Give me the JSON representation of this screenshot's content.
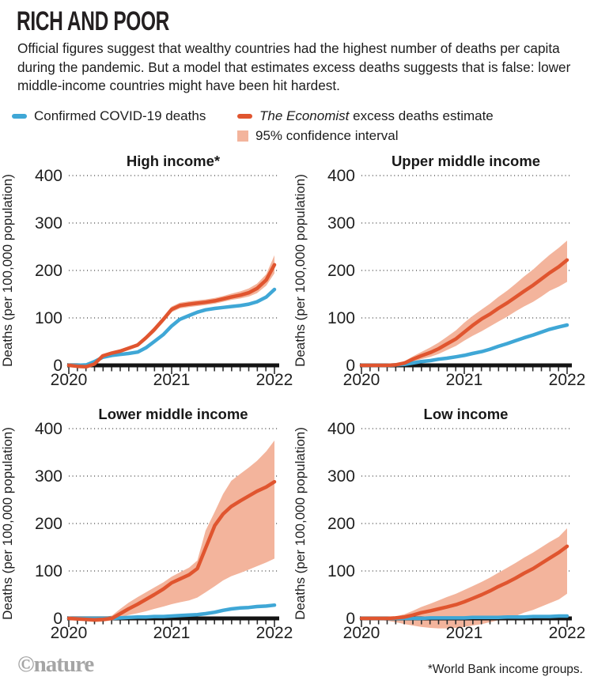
{
  "header": {
    "title": "RICH AND POOR",
    "subtitle": "Official figures suggest that wealthy countries had the highest number of deaths per capita during the pandemic. But a model that estimates excess deaths suggests that is false: lower middle-income countries might have been hit hardest."
  },
  "legend": {
    "confirmed": "Confirmed COVID-19 deaths",
    "excess_italic": "The Economist",
    "excess_rest": " excess deaths estimate",
    "ci": "95% confidence interval"
  },
  "footer": {
    "brand": "©nature",
    "footnote": "*World Bank income groups."
  },
  "colors": {
    "confirmed": "#3fa7d6",
    "excess": "#e0552f",
    "ci_band": "#f3b49c",
    "axis": "#141414",
    "grid_dots": "#4a4a4a",
    "text": "#1f1f1f",
    "brand_gray": "#a5a5a5"
  },
  "chart_data": {
    "type": "line",
    "title": "RICH AND POOR",
    "ylabel": "Deaths (per 100,000 population)",
    "xlabel": "",
    "ylim": [
      0,
      400
    ],
    "y_ticks": [
      0,
      100,
      200,
      300,
      400
    ],
    "x_ticks": [
      2020,
      2021,
      2022
    ],
    "grid": "dotted",
    "legend_position": "top",
    "series_names": [
      "Confirmed COVID-19 deaths",
      "The Economist excess deaths estimate",
      "95% confidence interval"
    ],
    "x": [
      2020,
      2020.08,
      2020.17,
      2020.25,
      2020.33,
      2020.42,
      2020.5,
      2020.58,
      2020.67,
      2020.75,
      2020.83,
      2020.92,
      2021,
      2021.08,
      2021.17,
      2021.25,
      2021.33,
      2021.42,
      2021.5,
      2021.58,
      2021.67,
      2021.75,
      2021.83,
      2021.92,
      2022
    ],
    "panels": [
      {
        "title": "High income*",
        "confirmed": [
          0,
          0,
          1,
          8,
          17,
          21,
          23,
          25,
          28,
          37,
          50,
          65,
          83,
          97,
          105,
          112,
          117,
          120,
          122,
          124,
          126,
          129,
          134,
          144,
          160
        ],
        "excess": [
          0,
          -2,
          -3,
          3,
          20,
          26,
          30,
          36,
          43,
          58,
          75,
          97,
          118,
          126,
          129,
          131,
          133,
          136,
          140,
          144,
          148,
          153,
          162,
          180,
          212
        ],
        "ci_upper": [
          2,
          0,
          -1,
          5,
          23,
          29,
          33,
          39,
          47,
          63,
          81,
          103,
          124,
          132,
          135,
          137,
          139,
          142,
          146,
          151,
          156,
          162,
          172,
          192,
          232
        ],
        "ci_lower": [
          -2,
          -4,
          -5,
          1,
          17,
          23,
          27,
          33,
          39,
          53,
          69,
          91,
          112,
          120,
          123,
          125,
          127,
          130,
          134,
          138,
          141,
          145,
          152,
          168,
          194
        ]
      },
      {
        "title": "Upper middle income",
        "confirmed": [
          0,
          0,
          0,
          0,
          1,
          2,
          5,
          8,
          10,
          13,
          15,
          18,
          21,
          25,
          29,
          34,
          40,
          46,
          52,
          58,
          64,
          70,
          76,
          81,
          85
        ],
        "excess": [
          0,
          0,
          0,
          0,
          1,
          5,
          13,
          20,
          27,
          35,
          45,
          56,
          70,
          84,
          98,
          108,
          120,
          132,
          144,
          156,
          169,
          182,
          195,
          208,
          222
        ],
        "ci_upper": [
          1,
          1,
          1,
          1,
          3,
          9,
          19,
          28,
          38,
          48,
          60,
          74,
          90,
          104,
          118,
          130,
          144,
          158,
          172,
          187,
          202,
          218,
          233,
          248,
          263
        ],
        "ci_lower": [
          -1,
          -1,
          -1,
          -1,
          0,
          2,
          8,
          13,
          18,
          24,
          32,
          41,
          52,
          62,
          72,
          82,
          92,
          103,
          114,
          124,
          134,
          145,
          157,
          166,
          176
        ]
      },
      {
        "title": "Lower middle income",
        "confirmed": [
          0,
          0,
          0,
          0,
          0,
          0,
          1,
          2,
          3,
          3,
          4,
          4,
          5,
          6,
          7,
          8,
          10,
          13,
          17,
          20,
          22,
          23,
          25,
          26,
          28
        ],
        "excess": [
          0,
          -1,
          -2,
          -3,
          -2,
          0,
          10,
          20,
          30,
          40,
          50,
          62,
          75,
          83,
          92,
          105,
          148,
          196,
          220,
          236,
          248,
          258,
          268,
          277,
          288
        ],
        "ci_upper": [
          1,
          0,
          0,
          0,
          2,
          6,
          20,
          33,
          45,
          55,
          65,
          76,
          88,
          97,
          107,
          122,
          185,
          225,
          262,
          290,
          305,
          318,
          332,
          352,
          375
        ],
        "ci_lower": [
          -1,
          -3,
          -6,
          -8,
          -7,
          -4,
          2,
          7,
          11,
          15,
          20,
          25,
          30,
          34,
          38,
          44,
          55,
          68,
          80,
          89,
          96,
          103,
          110,
          118,
          126
        ]
      },
      {
        "title": "Low income",
        "confirmed": [
          0,
          0,
          0,
          0,
          0,
          0,
          0,
          0,
          1,
          1,
          1,
          1,
          1,
          2,
          2,
          2,
          2,
          3,
          3,
          3,
          4,
          4,
          4,
          5,
          5
        ],
        "excess": [
          0,
          0,
          0,
          0,
          1,
          3,
          7,
          12,
          16,
          20,
          24,
          29,
          35,
          42,
          50,
          58,
          67,
          76,
          85,
          95,
          105,
          116,
          127,
          139,
          152
        ],
        "ci_upper": [
          1,
          1,
          1,
          2,
          4,
          9,
          16,
          24,
          31,
          38,
          45,
          52,
          60,
          68,
          77,
          86,
          96,
          107,
          117,
          128,
          139,
          150,
          161,
          172,
          190
        ],
        "ci_lower": [
          -1,
          -2,
          -3,
          -5,
          -8,
          -12,
          -15,
          -18,
          -20,
          -21,
          -21,
          -20,
          -18,
          -15,
          -12,
          -8,
          -4,
          0,
          5,
          12,
          18,
          25,
          32,
          40,
          52
        ]
      }
    ]
  }
}
